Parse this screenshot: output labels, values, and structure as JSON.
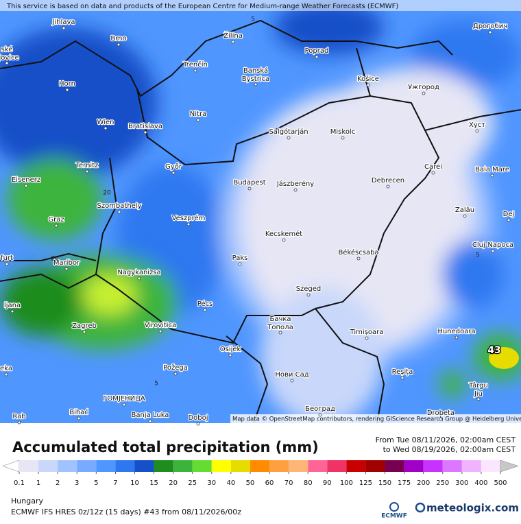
{
  "header": {
    "attribution": "This service is based on data and products of the European Centre for Medium-range Weather Forecasts (ECMWF)"
  },
  "map": {
    "cities": [
      "Jihlava",
      "Brno",
      "Žilina",
      "Poprad",
      "Дрогобич",
      "Trenčín",
      [
        "Banská",
        "Bystrica"
      ],
      "Horn",
      "Košice",
      "Ужгород",
      "Wien",
      "Bratislava",
      "Nitra",
      "Salgótarján",
      "Miskolc",
      "Хуст",
      "Eisenerz",
      "Ternitz",
      "Győr",
      "Budapest",
      "Jászberény",
      "Debrecen",
      "Carei",
      "Baia Mare",
      "Szombathely",
      "Graz",
      "Veszprém",
      "Zalău",
      "Kecskemét",
      "Cluj-Napoca",
      "Paks",
      "Békéscsaba",
      "Maribor",
      "Nagykanizsa",
      "Szeged",
      "Pécs",
      "Zagreb",
      "Virovitica",
      [
        "Бачка",
        "Топола"
      ],
      "Timișoara",
      "Hunedoara",
      "Osijek",
      "Požega",
      "Нови Сад",
      "Reșița",
      [
        "Târgu",
        "Jiu"
      ],
      "ГОМЈЕНИЦА",
      "Bihać",
      "Banja Luka",
      "Doboj",
      "Београд",
      "Drobeta",
      "Rab",
      "ljana",
      "eka",
      "furt",
      [
        "ské",
        "ějovice"
      ],
      "Dej"
    ],
    "contour_labels": [
      "5",
      "20",
      "20",
      "5",
      "5"
    ],
    "max_label": "43",
    "credit": "Map data © OpenStreetMap contributors, rendering GIScience Research Group @ Heidelberg University"
  },
  "legend": {
    "title": "Accumulated total precipitation (mm)",
    "period_from": "From Tue 08/11/2026, 02:00am CEST",
    "period_to": "to Wed 08/19/2026, 02:00am CEST",
    "ticks": [
      0.1,
      1,
      2,
      3,
      5,
      7,
      10,
      15,
      20,
      25,
      30,
      40,
      50,
      60,
      70,
      80,
      90,
      100,
      125,
      150,
      175,
      200,
      250,
      300,
      400,
      500
    ],
    "colors": [
      "#ffffff",
      "#e6e6f5",
      "#c8d7fa",
      "#a0c3ff",
      "#78aaff",
      "#5096ff",
      "#2d78f0",
      "#1450c8",
      "#1e8c1e",
      "#3cb43c",
      "#64dc32",
      "#ffff00",
      "#e6dc00",
      "#ff8c00",
      "#ffa040",
      "#ffb478",
      "#ff6496",
      "#f03264",
      "#c80000",
      "#a00000",
      "#780050",
      "#a000c8",
      "#c832ff",
      "#dc78ff",
      "#f0b4ff",
      "#fae6ff",
      "#c8c8c8"
    ]
  },
  "footer": {
    "region": "Hungary",
    "model": "ECMWF IFS HRES 0z/12z (15 days) #43 from 08/11/2026/00z",
    "ecmwf": "ECMWF",
    "brand": "meteologix.com"
  }
}
